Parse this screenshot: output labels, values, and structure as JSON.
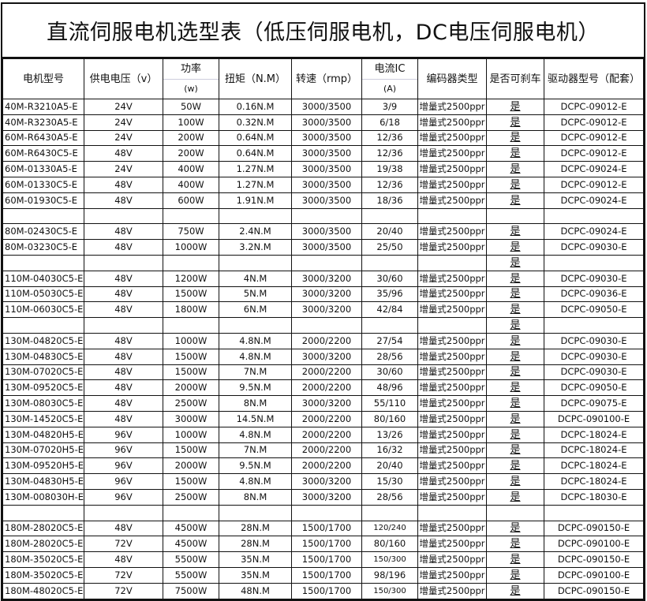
{
  "title": "直流伺服电机选型表（低压伺服电机，DC电压伺服电机）",
  "headers": {
    "model": "电机型号",
    "voltage": "供电电压（v）",
    "power_top": "功率",
    "power_unit": "(w)",
    "torque": "扭矩（N.M）",
    "speed": "转速（rmp）",
    "current_top": "电流IC",
    "current_unit": "(A)",
    "encoder": "编码器类型",
    "brake": "是否可刹车",
    "driver": "驱动器型号（配套）"
  },
  "rows": [
    [
      "40M-R3210A5-E",
      "24V",
      "50W",
      "0.16N.M",
      "3000/3500",
      "3/9",
      "增量式2500ppr",
      "是",
      "DCPC-09012-E"
    ],
    [
      "40M-R3230A5-E",
      "24V",
      "100W",
      "0.32N.M",
      "3000/3500",
      "6/18",
      "增量式2500ppr",
      "是",
      "DCPC-09012-E"
    ],
    [
      "60M-R6430A5-E",
      "24V",
      "200W",
      "0.64N.M",
      "3000/3500",
      "12/36",
      "增量式2500ppr",
      "是",
      "DCPC-09012-E"
    ],
    [
      "60M-R6430C5-E",
      "48V",
      "200W",
      "0.64N.M",
      "3000/3500",
      "12/36",
      "增量式2500ppr",
      "是",
      "DCPC-09012-E"
    ],
    [
      "60M-01330A5-E",
      "24V",
      "400W",
      "1.27N.M",
      "3000/3500",
      "19/38",
      "增量式2500ppr",
      "是",
      "DCPC-09024-E"
    ],
    [
      "60M-01330C5-E",
      "48V",
      "400W",
      "1.27N.M",
      "3000/3500",
      "12/36",
      "增量式2500ppr",
      "是",
      "DCPC-09012-E"
    ],
    [
      "60M-01930C5-E",
      "48V",
      "600W",
      "1.91N.M",
      "3000/3500",
      "18/36",
      "增量式2500ppr",
      "是",
      "DCPC-09024-E"
    ],
    [
      "",
      "",
      "",
      "",
      "",
      "",
      "",
      "",
      ""
    ],
    [
      "80M-02430C5-E",
      "48V",
      "750W",
      "2.4N.M",
      "3000/3500",
      "20/40",
      "增量式2500ppr",
      "是",
      "DCPC-09024-E"
    ],
    [
      "80M-03230C5-E",
      "48V",
      "1000W",
      "3.2N.M",
      "3000/3500",
      "25/50",
      "增量式2500ppr",
      "是",
      "DCPC-09030-E"
    ],
    [
      "",
      "",
      "",
      "",
      "",
      "",
      "",
      "是",
      ""
    ],
    [
      "110M-04030C5-E",
      "48V",
      "1200W",
      "4N.M",
      "3000/3200",
      "30/60",
      "增量式2500ppr",
      "是",
      "DCPC-09030-E"
    ],
    [
      "110M-05030C5-E",
      "48V",
      "1500W",
      "5N.M",
      "3000/3200",
      "35/96",
      "增量式2500ppr",
      "是",
      "DCPC-09036-E"
    ],
    [
      "110M-06030C5-E",
      "48V",
      "1800W",
      "6N.M",
      "3000/3200",
      "42/84",
      "增量式2500ppr",
      "是",
      "DCPC-09050-E"
    ],
    [
      "",
      "",
      "",
      "",
      "",
      "",
      "",
      "是",
      ""
    ],
    [
      "130M-04820C5-E",
      "48V",
      "1000W",
      "4.8N.M",
      "2000/2200",
      "27/54",
      "增量式2500ppr",
      "是",
      "DCPC-09030-E"
    ],
    [
      "130M-04830C5-E",
      "48V",
      "1500W",
      "4.8N.M",
      "3000/3200",
      "28/56",
      "增量式2500ppr",
      "是",
      "DCPC-09030-E"
    ],
    [
      "130M-07020C5-E",
      "48V",
      "1500W",
      "7N.M",
      "2000/2200",
      "30/60",
      "增量式2500ppr",
      "是",
      "DCPC-09030-E"
    ],
    [
      "130M-09520C5-E",
      "48V",
      "2000W",
      "9.5N.M",
      "2000/2200",
      "48/96",
      "增量式2500ppr",
      "是",
      "DCPC-09050-E"
    ],
    [
      "130M-08030C5-E",
      "48V",
      "2500W",
      "8N.M",
      "3000/3200",
      "55/110",
      "增量式2500ppr",
      "是",
      "DCPC-09075-E"
    ],
    [
      "130M-14520C5-E",
      "48V",
      "3000W",
      "14.5N.M",
      "2000/2200",
      "80/160",
      "增量式2500ppr",
      "是",
      "DCPC-090100-E"
    ],
    [
      "130M-04820H5-E",
      "96V",
      "1000W",
      "4.8N.M",
      "2000/2200",
      "13/26",
      "增量式2500ppr",
      "是",
      "DCPC-18024-E"
    ],
    [
      "130M-07020H5-E",
      "96V",
      "1500W",
      "7N.M",
      "2000/2200",
      "16/32",
      "增量式2500ppr",
      "是",
      "DCPC-18024-E"
    ],
    [
      "130M-09520H5-E",
      "96V",
      "2000W",
      "9.5N.M",
      "2000/2200",
      "20/40",
      "增量式2500ppr",
      "是",
      "DCPC-18024-E"
    ],
    [
      "130M-04830H5-E",
      "96V",
      "1500W",
      "4.8N.M",
      "3000/3200",
      "15/30",
      "增量式2500ppr",
      "是",
      "DCPC-18024-E"
    ],
    [
      "130M-008030H-E",
      "96V",
      "2500W",
      "8N.M",
      "3000/3200",
      "28/56",
      "增量式2500ppr",
      "是",
      "DCPC-18030-E"
    ],
    [
      "",
      "",
      "",
      "",
      "",
      "",
      "",
      "",
      ""
    ],
    [
      "180M-28020C5-E",
      "48V",
      "4500W",
      "28N.M",
      "1500/1700",
      "120/240",
      "增量式2500ppr",
      "是",
      "DCPC-090150-E"
    ],
    [
      "180M-28020C5-E",
      "72V",
      "4500W",
      "28N.M",
      "1500/1700",
      "80/160",
      "增量式2500ppr",
      "是",
      "DCPC-090100-E"
    ],
    [
      "180M-35020C5-E",
      "48V",
      "5500W",
      "35N.M",
      "1500/1700",
      "150/300",
      "增量式2500ppr",
      "是",
      "DCPC-090150-E"
    ],
    [
      "180M-35020C5-E",
      "72V",
      "5500W",
      "35N.M",
      "1500/1700",
      "98/196",
      "增量式2500ppr",
      "是",
      "DCPC-090100-E"
    ],
    [
      "180M-48020C5-E",
      "72V",
      "7500W",
      "48N.M",
      "1500/1700",
      "150/300",
      "增量式2500ppr",
      "是",
      "DCPC-090150-E"
    ]
  ]
}
